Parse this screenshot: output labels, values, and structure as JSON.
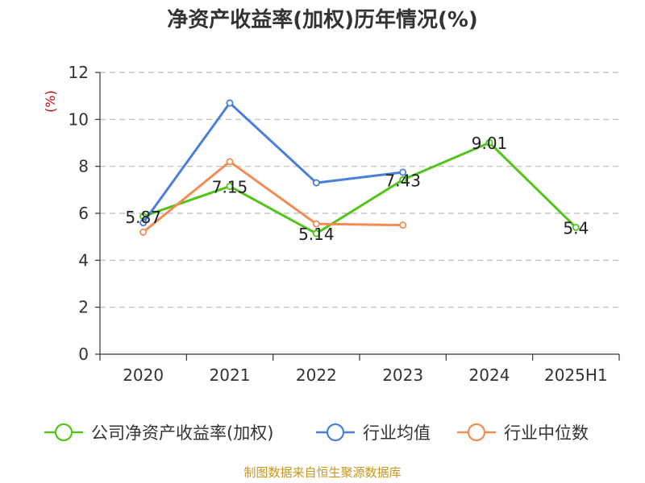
{
  "chart_data": {
    "type": "line",
    "title": "净资产收益率(加权)历年情况(%)",
    "ylabel": "(%)",
    "xlabel": "",
    "categories": [
      "2020",
      "2021",
      "2022",
      "2023",
      "2024",
      "2025H1"
    ],
    "ylim": [
      0,
      12
    ],
    "yticks": [
      0,
      2,
      4,
      6,
      8,
      10,
      12
    ],
    "grid": true,
    "legend_position": "bottom",
    "series": [
      {
        "name": "公司净资产收益率(加权)",
        "color": "#52c41a",
        "values": [
          5.87,
          7.15,
          5.14,
          7.43,
          9.01,
          5.4
        ],
        "labels": [
          "5.87",
          "7.15",
          "5.14",
          "7.43",
          "9.01",
          "5.4"
        ]
      },
      {
        "name": "行业均值",
        "color": "#4a7fdb",
        "values": [
          5.6,
          10.7,
          7.3,
          7.75,
          null,
          null
        ]
      },
      {
        "name": "行业中位数",
        "color": "#f28b54",
        "values": [
          5.2,
          8.2,
          5.55,
          5.5,
          null,
          null
        ]
      }
    ]
  },
  "source_text": "制图数据来自恒生聚源数据库"
}
